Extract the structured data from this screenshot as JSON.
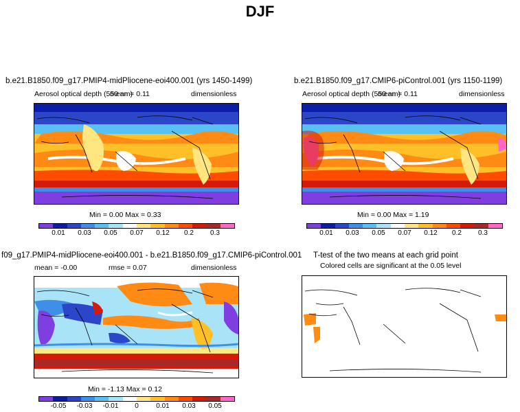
{
  "title": "DJF",
  "panel1": {
    "title": "b.e21.B1850.f09_g17.PMIP4-midPliocene-eoi400.001 (yrs 1450-1499)",
    "variable": "Aerosol optical depth (550 nm)",
    "mean": "mean = 0.11",
    "units": "dimensionless",
    "minmax": "Min =   0.00 Max =   0.33",
    "ticks": [
      "0.01",
      "0.03",
      "0.05",
      "0.07",
      "0.12",
      "0.2",
      "0.3"
    ]
  },
  "panel2": {
    "title": "b.e21.B1850.f09_g17.CMIP6-piControl.001 (yrs 1150-1199)",
    "variable": "Aerosol optical depth (550 nm)",
    "mean": "mean = 0.11",
    "units": "dimensionless",
    "minmax": "Min =   0.00 Max =   1.19",
    "ticks": [
      "0.01",
      "0.03",
      "0.05",
      "0.07",
      "0.12",
      "0.2",
      "0.3"
    ]
  },
  "panel3": {
    "title": "f09_g17.PMIP4-midPliocene-eoi400.001 - b.e21.B1850.f09_g17.CMIP6-piControl.001",
    "mean": "mean =  -0.00",
    "rmse": "rmse =   0.07",
    "units": "dimensionless",
    "minmax": "Min =  -1.13 Max =   0.12",
    "ticks": [
      "-0.05",
      "-0.03",
      "-0.01",
      "0",
      "0.01",
      "0.03",
      "0.05"
    ]
  },
  "panel4": {
    "title": "T-test of the two means at each grid point",
    "subtitle": "Colored cells are significant at the 0.05 level"
  },
  "colors": {
    "abs_scale": [
      "#7f3fe0",
      "#0b1da8",
      "#2c46c9",
      "#3f8ee8",
      "#59c1f2",
      "#a8e3f8",
      "#ffffff",
      "#ffe680",
      "#ffbf26",
      "#ff8a14",
      "#ff4d00",
      "#d61a0a",
      "#a82a28",
      "#ff66cc"
    ],
    "diff_scale": [
      "#7f3fe0",
      "#0b1da8",
      "#2c46c9",
      "#3f8ee8",
      "#59c1f2",
      "#a8e3f8",
      "#ffffff",
      "#ffe680",
      "#ffbf26",
      "#ff8a14",
      "#ff4d00",
      "#d61a0a",
      "#a82a28",
      "#ff66cc"
    ]
  }
}
